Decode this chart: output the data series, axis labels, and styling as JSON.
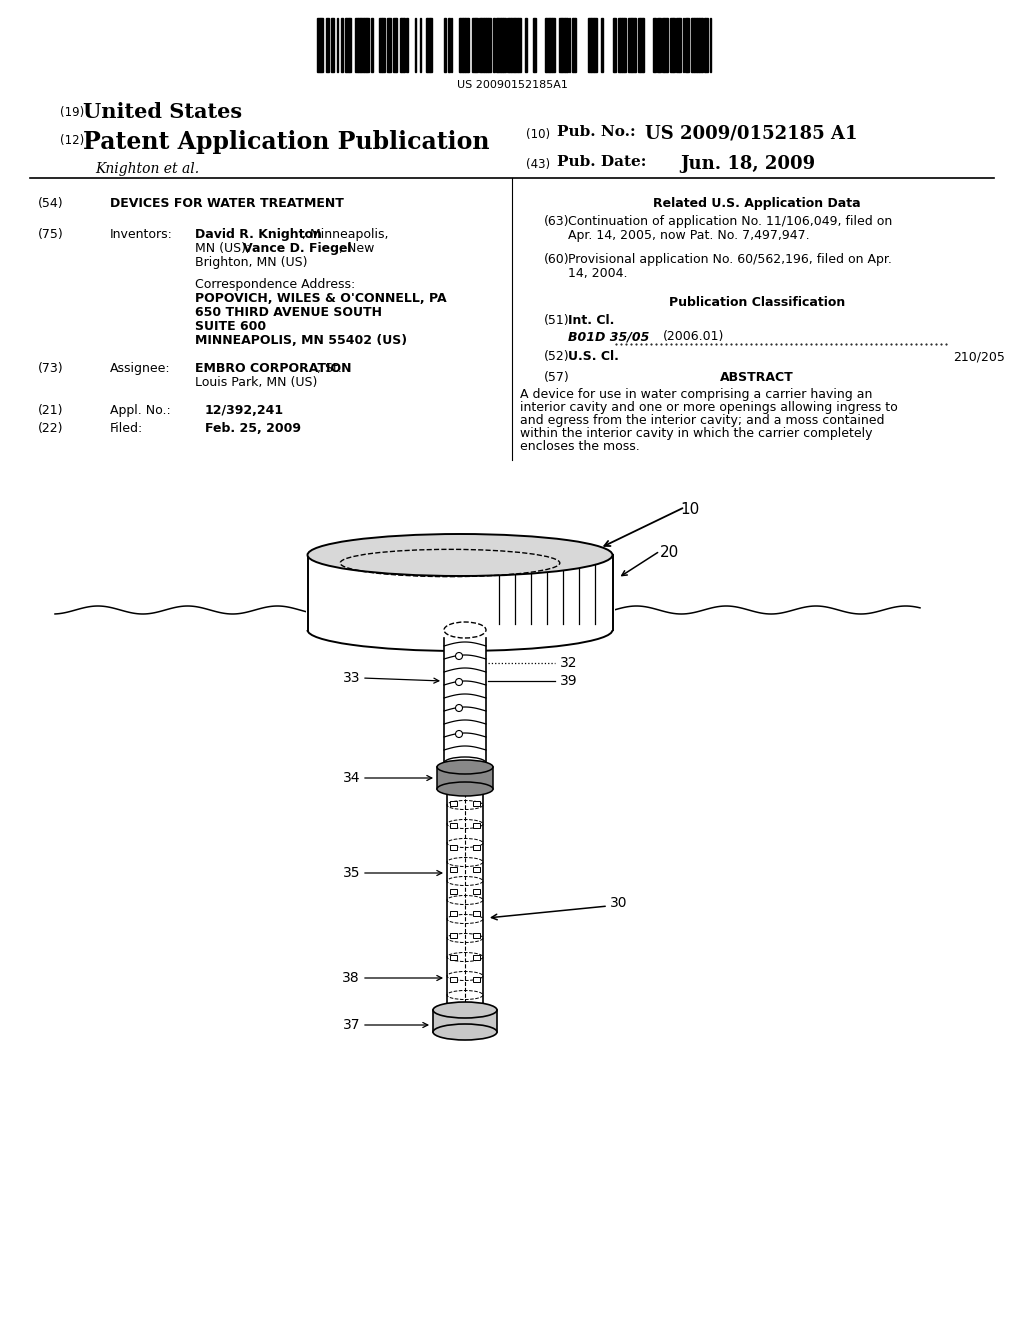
{
  "bg_color": "#ffffff",
  "barcode_text": "US 20090152185A1",
  "title_19": "United States",
  "title_12": "Patent Application Publication",
  "pub_no_label": "Pub. No.:",
  "pub_no_value": "US 2009/0152185 A1",
  "pub_date_label": "Pub. Date:",
  "pub_date_value": "Jun. 18, 2009",
  "author_line": "Knighton et al.",
  "s54_title": "DEVICES FOR WATER TREATMENT",
  "s75_key": "Inventors:",
  "s73_key": "Assignee:",
  "s21_key": "Appl. No.:",
  "s21_val": "12/392,241",
  "s22_key": "Filed:",
  "s22_val": "Feb. 25, 2009",
  "corr_label": "Correspondence Address:",
  "corr_name": "POPOVICH, WILES & O'CONNELL, PA",
  "corr_addr1": "650 THIRD AVENUE SOUTH",
  "corr_addr2": "SUITE 600",
  "corr_addr3": "MINNEAPOLIS, MN 55402 (US)",
  "right_related_title": "Related U.S. Application Data",
  "s63_val1": "Continuation of application No. 11/106,049, filed on",
  "s63_val2": "Apr. 14, 2005, now Pat. No. 7,497,947.",
  "s60_val1": "Provisional application No. 60/562,196, filed on Apr.",
  "s60_val2": "14, 2004.",
  "pub_class_title": "Publication Classification",
  "s51_key": "Int. Cl.",
  "s51_class": "B01D 35/05",
  "s51_year": "(2006.01)",
  "s52_key": "U.S. Cl.",
  "s52_val": "210/205",
  "s57_key": "ABSTRACT",
  "abstract_l1": "A device for use in water comprising a carrier having an",
  "abstract_l2": "interior cavity and one or more openings allowing ingress to",
  "abstract_l3": "and egress from the interior cavity; and a moss contained",
  "abstract_l4": "within the interior cavity in which the carrier completely",
  "abstract_l5": "encloses the moss.",
  "lbl10": "10",
  "lbl20": "20",
  "lbl30": "30",
  "lbl33": "33",
  "lbl32": "32",
  "lbl39": "39",
  "lbl34": "34",
  "lbl35": "35",
  "lbl38": "38",
  "lbl37": "37"
}
